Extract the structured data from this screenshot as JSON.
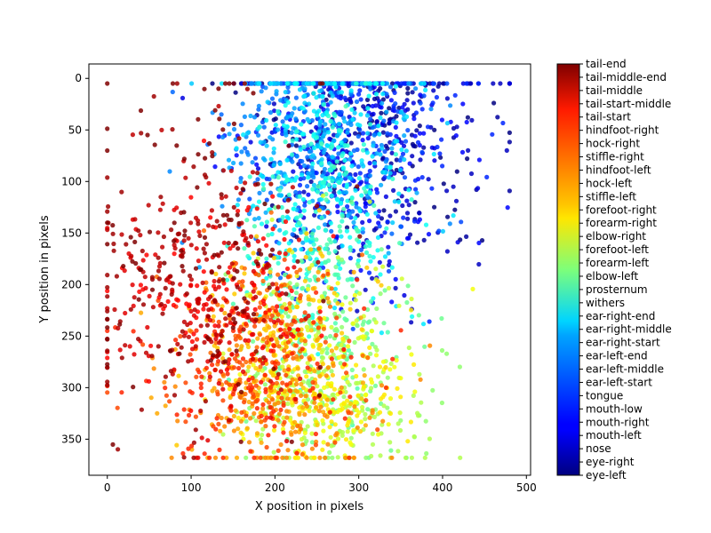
{
  "chart_data": {
    "type": "scatter",
    "title": "",
    "xlabel": "X position in pixels",
    "ylabel": "Y position in pixels",
    "xlim": [
      -22,
      505
    ],
    "ylim": [
      385,
      -14
    ],
    "y_inverted": true,
    "grid": false,
    "x_ticks": [
      0,
      100,
      200,
      300,
      400,
      500
    ],
    "y_ticks": [
      0,
      50,
      100,
      150,
      200,
      250,
      300,
      350
    ],
    "colormap": "jet",
    "colorbar": {
      "labels": [
        "eye-left",
        "eye-right",
        "nose",
        "mouth-left",
        "mouth-right",
        "mouth-low",
        "tongue",
        "ear-left-start",
        "ear-left-middle",
        "ear-left-end",
        "ear-right-start",
        "ear-right-middle",
        "ear-right-end",
        "withers",
        "prosternum",
        "elbow-left",
        "forearm-left",
        "forefoot-left",
        "elbow-right",
        "forearm-right",
        "forefoot-right",
        "stiffle-left",
        "hock-left",
        "hindfoot-left",
        "stiffle-right",
        "hock-right",
        "hindfoot-right",
        "tail-start",
        "tail-start-middle",
        "tail-middle",
        "tail-middle-end",
        "tail-end"
      ]
    },
    "series": [
      {
        "label_index": 0,
        "center": [
          300,
          40
        ],
        "spread": [
          70,
          70
        ]
      },
      {
        "label_index": 1,
        "center": [
          300,
          40
        ],
        "spread": [
          70,
          70
        ]
      },
      {
        "label_index": 2,
        "center": [
          330,
          60
        ],
        "spread": [
          60,
          70
        ]
      },
      {
        "label_index": 3,
        "center": [
          300,
          60
        ],
        "spread": [
          70,
          70
        ]
      },
      {
        "label_index": 4,
        "center": [
          300,
          60
        ],
        "spread": [
          70,
          70
        ]
      },
      {
        "label_index": 5,
        "center": [
          300,
          70
        ],
        "spread": [
          70,
          70
        ]
      },
      {
        "label_index": 6,
        "center": [
          290,
          60
        ],
        "spread": [
          65,
          60
        ]
      },
      {
        "label_index": 7,
        "center": [
          250,
          40
        ],
        "spread": [
          60,
          60
        ]
      },
      {
        "label_index": 8,
        "center": [
          245,
          60
        ],
        "spread": [
          60,
          60
        ]
      },
      {
        "label_index": 9,
        "center": [
          235,
          80
        ],
        "spread": [
          55,
          60
        ]
      },
      {
        "label_index": 10,
        "center": [
          270,
          50
        ],
        "spread": [
          60,
          60
        ]
      },
      {
        "label_index": 11,
        "center": [
          265,
          80
        ],
        "spread": [
          55,
          65
        ]
      },
      {
        "label_index": 12,
        "center": [
          255,
          110
        ],
        "spread": [
          50,
          70
        ]
      },
      {
        "label_index": 13,
        "center": [
          250,
          130
        ],
        "spread": [
          45,
          55
        ]
      },
      {
        "label_index": 14,
        "center": [
          245,
          200
        ],
        "spread": [
          45,
          55
        ]
      },
      {
        "label_index": 15,
        "center": [
          260,
          270
        ],
        "spread": [
          55,
          55
        ]
      },
      {
        "label_index": 16,
        "center": [
          270,
          300
        ],
        "spread": [
          55,
          45
        ]
      },
      {
        "label_index": 17,
        "center": [
          280,
          320
        ],
        "spread": [
          60,
          35
        ]
      },
      {
        "label_index": 18,
        "center": [
          245,
          260
        ],
        "spread": [
          50,
          55
        ]
      },
      {
        "label_index": 19,
        "center": [
          255,
          290
        ],
        "spread": [
          55,
          45
        ]
      },
      {
        "label_index": 20,
        "center": [
          255,
          310
        ],
        "spread": [
          55,
          35
        ]
      },
      {
        "label_index": 21,
        "center": [
          210,
          240
        ],
        "spread": [
          50,
          50
        ]
      },
      {
        "label_index": 22,
        "center": [
          190,
          280
        ],
        "spread": [
          60,
          45
        ]
      },
      {
        "label_index": 23,
        "center": [
          200,
          310
        ],
        "spread": [
          65,
          40
        ]
      },
      {
        "label_index": 24,
        "center": [
          190,
          250
        ],
        "spread": [
          50,
          50
        ]
      },
      {
        "label_index": 25,
        "center": [
          170,
          280
        ],
        "spread": [
          60,
          45
        ]
      },
      {
        "label_index": 26,
        "center": [
          180,
          300
        ],
        "spread": [
          70,
          40
        ]
      },
      {
        "label_index": 27,
        "center": [
          140,
          210
        ],
        "spread": [
          55,
          50
        ]
      },
      {
        "label_index": 28,
        "center": [
          120,
          220
        ],
        "spread": [
          55,
          55
        ]
      },
      {
        "label_index": 29,
        "center": [
          110,
          190
        ],
        "spread": [
          55,
          60
        ]
      },
      {
        "label_index": 30,
        "center": [
          90,
          190
        ],
        "spread": [
          70,
          80
        ]
      },
      {
        "label_index": 31,
        "center": [
          120,
          160
        ],
        "spread": [
          80,
          90
        ]
      }
    ]
  }
}
